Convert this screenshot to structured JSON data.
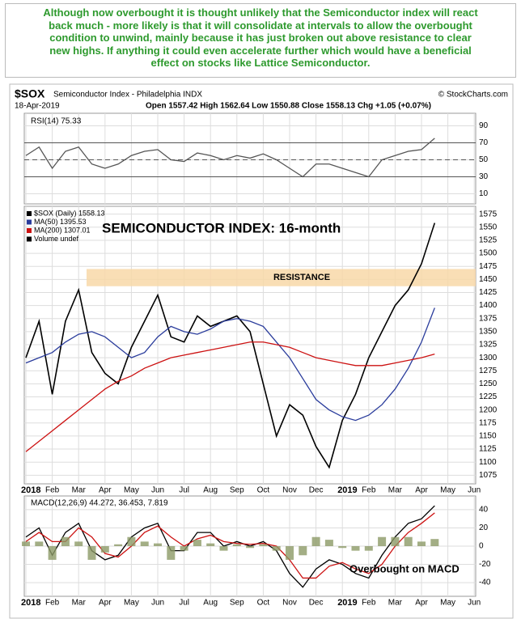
{
  "note": {
    "lines": [
      "Although now overbought it is thought unlikely that the Semiconductor index will react",
      "back much - more likely is that it will consolidate at intervals to allow the overbought",
      "condition to unwind, mainly because it has just broken out above resistance to clear",
      "new highs. If anything it could even accelerate further which would have a beneficial",
      "effect on stocks like Lattice Semiconductor."
    ]
  },
  "header": {
    "symbol": "$SOX",
    "description": "Semiconductor Index - Philadelphia INDX",
    "credit": "© StockCharts.com",
    "date": "18-Apr-2019",
    "quote": "Open 1557.42  High 1562.64  Low 1550.88  Close 1558.13  Chg +1.05 (+0.07%)"
  },
  "chart_data": [
    {
      "type": "line",
      "title": "RSI(14) 75.33",
      "ylim": [
        0,
        100
      ],
      "yticks": [
        10,
        30,
        50,
        70,
        90
      ],
      "ref_lines": [
        30,
        50,
        70
      ],
      "series": [
        {
          "name": "RSI(14) 75.33",
          "color": "#555555",
          "values": [
            55,
            65,
            40,
            60,
            65,
            45,
            40,
            45,
            55,
            60,
            62,
            50,
            48,
            58,
            55,
            50,
            55,
            52,
            57,
            50,
            40,
            30,
            45,
            45,
            40,
            35,
            30,
            50,
            55,
            60,
            62,
            75.33
          ]
        }
      ]
    },
    {
      "type": "line",
      "title": "SEMICONDUCTOR INDEX: 16-month",
      "ylim": [
        1060,
        1590
      ],
      "yticks": [
        1075,
        1100,
        1125,
        1150,
        1175,
        1200,
        1225,
        1250,
        1275,
        1300,
        1325,
        1350,
        1375,
        1400,
        1425,
        1450,
        1475,
        1500,
        1525,
        1550,
        1575
      ],
      "xticks": [
        "2018",
        "Feb",
        "Mar",
        "Apr",
        "May",
        "Jun",
        "Jul",
        "Aug",
        "Sep",
        "Oct",
        "Nov",
        "Dec",
        "2019",
        "Feb",
        "Mar",
        "Apr",
        "May",
        "Jun"
      ],
      "resistance": {
        "label": "RESISTANCE",
        "range": [
          1437,
          1470
        ]
      },
      "extra_legend": "Volume undef",
      "series": [
        {
          "name": "$SOX (Daily) 1558.13",
          "color": "#000000",
          "values": [
            1300,
            1370,
            1230,
            1370,
            1430,
            1310,
            1270,
            1250,
            1320,
            1370,
            1420,
            1340,
            1330,
            1380,
            1360,
            1370,
            1380,
            1350,
            1250,
            1150,
            1210,
            1190,
            1130,
            1090,
            1180,
            1230,
            1300,
            1350,
            1400,
            1430,
            1480,
            1558.13
          ]
        },
        {
          "name": "MA(50) 1395.53",
          "color": "#2a3c9c",
          "values": [
            1290,
            1300,
            1310,
            1330,
            1345,
            1350,
            1340,
            1320,
            1300,
            1310,
            1340,
            1360,
            1350,
            1345,
            1355,
            1370,
            1375,
            1370,
            1360,
            1330,
            1300,
            1260,
            1220,
            1200,
            1187,
            1180,
            1190,
            1210,
            1240,
            1280,
            1330,
            1395.53
          ]
        },
        {
          "name": "MA(200) 1307.01",
          "color": "#cc1111",
          "values": [
            1120,
            1140,
            1160,
            1180,
            1200,
            1220,
            1240,
            1255,
            1265,
            1280,
            1290,
            1300,
            1305,
            1310,
            1315,
            1320,
            1325,
            1330,
            1330,
            1325,
            1320,
            1310,
            1300,
            1295,
            1290,
            1285,
            1285,
            1285,
            1290,
            1295,
            1300,
            1307.01
          ]
        }
      ]
    },
    {
      "type": "line",
      "legend": "MACD(12,26,9) 44.272, 36.453, 7.819",
      "annotation": "Overbought on MACD",
      "ylim": [
        -55,
        55
      ],
      "yticks": [
        -40,
        -20,
        0,
        20,
        40
      ],
      "xticks": [
        "2018",
        "Feb",
        "Mar",
        "Apr",
        "May",
        "Jun",
        "Jul",
        "Aug",
        "Sep",
        "Oct",
        "Nov",
        "Dec",
        "2019",
        "Feb",
        "Mar",
        "Apr",
        "May",
        "Jun"
      ],
      "series": [
        {
          "name": "MACD",
          "color": "#000000",
          "values": [
            10,
            20,
            -10,
            15,
            25,
            -5,
            -15,
            -10,
            10,
            20,
            25,
            -5,
            -5,
            15,
            15,
            0,
            5,
            0,
            5,
            -5,
            -30,
            -45,
            -25,
            -15,
            -20,
            -30,
            -35,
            -10,
            10,
            25,
            30,
            44.272
          ]
        },
        {
          "name": "Signal",
          "color": "#cc1111",
          "values": [
            5,
            15,
            5,
            5,
            20,
            10,
            -8,
            -12,
            0,
            15,
            22,
            10,
            0,
            8,
            12,
            5,
            3,
            2,
            3,
            0,
            -15,
            -35,
            -35,
            -22,
            -18,
            -25,
            -30,
            -20,
            0,
            15,
            25,
            36.453
          ]
        },
        {
          "name": "Histogram",
          "color": "#8c9a66",
          "bars": true,
          "values": [
            5,
            5,
            -15,
            10,
            5,
            -15,
            -7,
            2,
            10,
            5,
            3,
            -15,
            -5,
            7,
            3,
            -5,
            2,
            -2,
            2,
            -5,
            -15,
            -10,
            10,
            7,
            -2,
            -5,
            -5,
            10,
            10,
            10,
            5,
            7.819
          ]
        }
      ]
    }
  ]
}
